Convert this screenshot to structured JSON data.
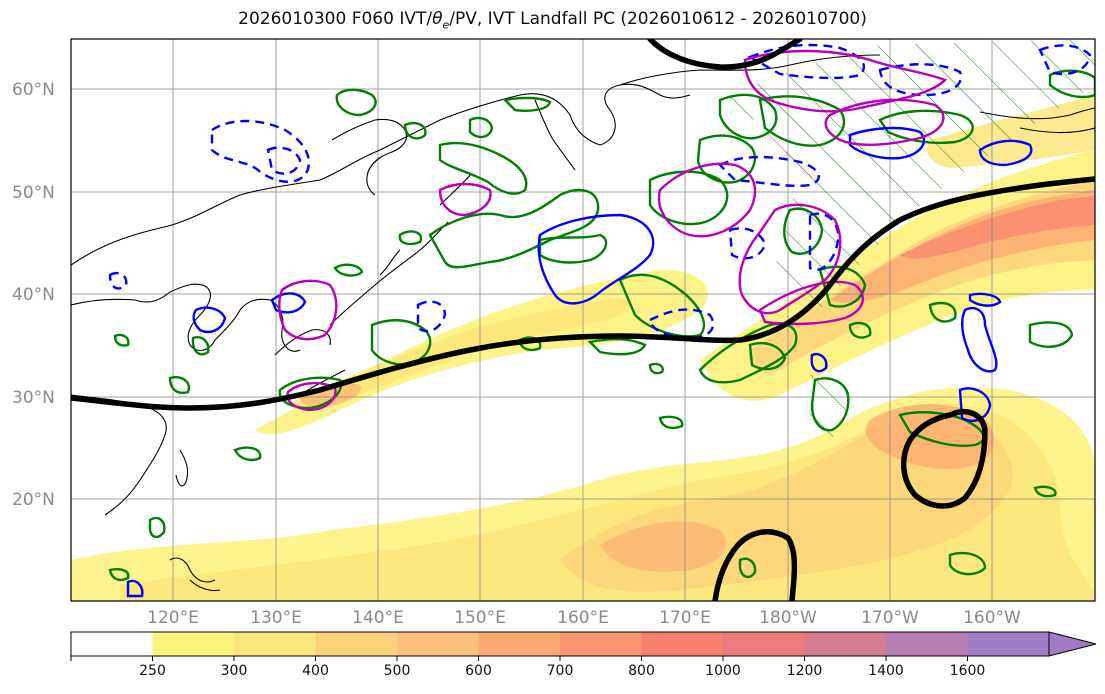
{
  "title": "2026010300 F060 IVT/θe/PV, IVT Landfall PC (2026010612 - 2026010700)",
  "title_parts": {
    "prefix": "2026010300 F060 IVT/",
    "theta": "θ",
    "theta_sub": "e",
    "suffix": "/PV, IVT Landfall PC (2026010612 - 2026010700)"
  },
  "map": {
    "lat_labels": [
      "60°N",
      "50°N",
      "40°N",
      "30°N",
      "20°N"
    ],
    "lon_labels": [
      "120°E",
      "130°E",
      "140°E",
      "150°E",
      "160°E",
      "170°E",
      "180°W",
      "170°W",
      "160°W"
    ],
    "lon_range": [
      110,
      210
    ],
    "lat_range": [
      10,
      65
    ]
  },
  "colorbar": {
    "levels": [
      "250",
      "300",
      "400",
      "500",
      "600",
      "700",
      "800",
      "1000",
      "1200",
      "1400",
      "1600"
    ],
    "colors": [
      "#ffffff",
      "#fdf27a",
      "#fde57a",
      "#fdd27a",
      "#fdc07a",
      "#fcaa72",
      "#fb9470",
      "#f9806e",
      "#ef7a7c",
      "#d47c92",
      "#b77fb4",
      "#a07cc6"
    ]
  },
  "colors": {
    "theta_e": "#008000",
    "pv_pos": "#0000ff",
    "pv_neg": "#0000ff",
    "landfall": "#bb00bb",
    "jet": "#000000",
    "coast": "#000000"
  }
}
